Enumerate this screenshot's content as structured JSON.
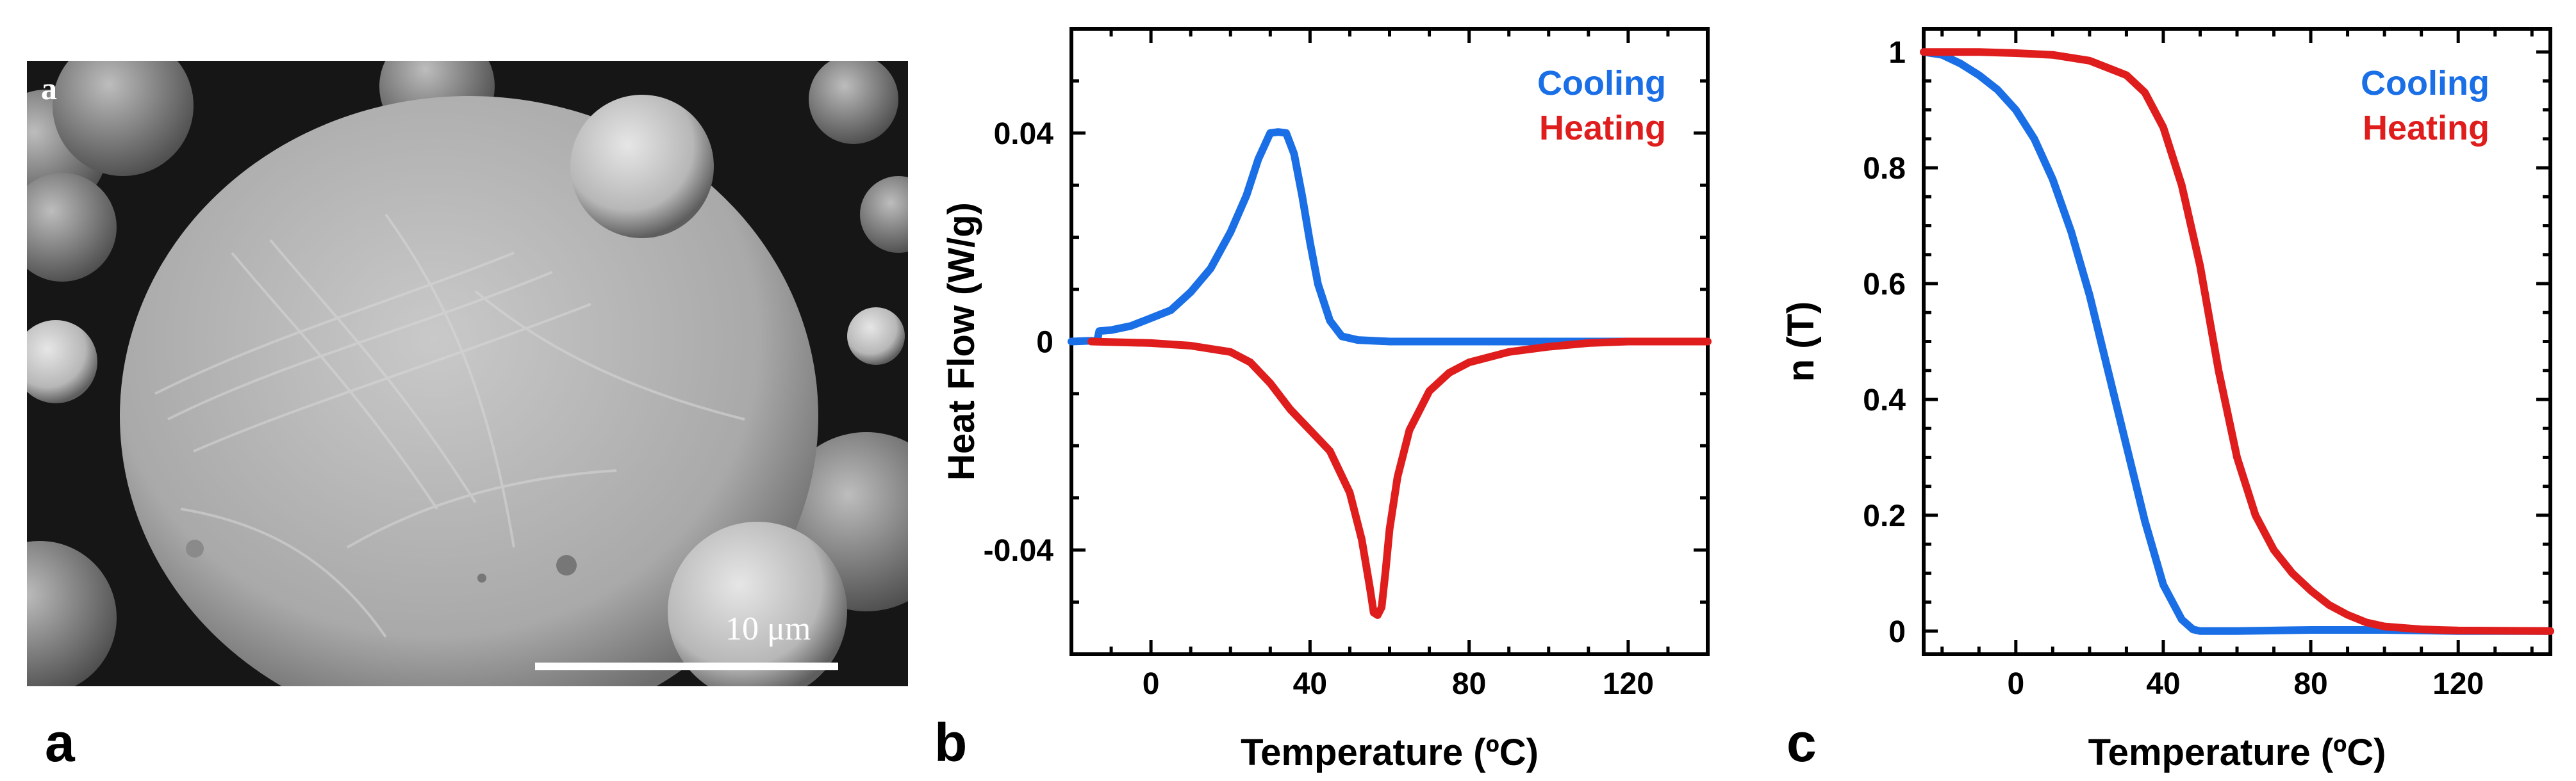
{
  "panels": {
    "a": {
      "label": "a",
      "inset_label": "a",
      "scale_bar": "10 μm",
      "image_description_icon": "sem-micrograph-particle"
    },
    "b": {
      "label": "b"
    },
    "c": {
      "label": "c"
    }
  },
  "colors": {
    "cooling": "#1a6fe6",
    "heating": "#e01d1d"
  },
  "chart_data": [
    {
      "id": "b",
      "type": "line",
      "title": "",
      "xlabel": "Temperature (ºC)",
      "ylabel": "Heat Flow (W/g)",
      "xlim": [
        -20,
        140
      ],
      "ylim": [
        -0.06,
        0.06
      ],
      "xticks": [
        0,
        40,
        80,
        120
      ],
      "xtick_labels": [
        "0",
        "40",
        "80",
        "120"
      ],
      "yticks": [
        -0.04,
        0,
        0.04
      ],
      "ytick_labels": [
        "-0.04",
        "0",
        "0.04"
      ],
      "legend": [
        "Cooling",
        "Heating"
      ],
      "series": [
        {
          "name": "Cooling",
          "x": [
            120,
            100,
            80,
            60,
            52,
            48,
            45,
            42,
            40,
            38,
            36,
            34,
            32,
            30,
            27,
            24,
            20,
            15,
            10,
            5,
            0,
            -5,
            -10,
            -13,
            -13.5,
            -17,
            -20
          ],
          "y": [
            0,
            0,
            0,
            0,
            0.0003,
            0.001,
            0.004,
            0.011,
            0.019,
            0.028,
            0.036,
            0.04,
            0.0402,
            0.04,
            0.035,
            0.028,
            0.021,
            0.014,
            0.0095,
            0.006,
            0.0045,
            0.003,
            0.0022,
            0.002,
            0.0002,
            0.0001,
            0
          ]
        },
        {
          "name": "Heating",
          "x": [
            -15,
            0,
            10,
            20,
            25,
            30,
            35,
            40,
            45,
            50,
            53,
            55,
            56,
            57,
            58,
            59,
            60,
            62,
            65,
            70,
            75,
            80,
            90,
            100,
            110,
            120,
            130,
            140
          ],
          "y": [
            0,
            -0.0003,
            -0.0008,
            -0.002,
            -0.004,
            -0.008,
            -0.013,
            -0.017,
            -0.021,
            -0.029,
            -0.038,
            -0.047,
            -0.052,
            -0.0525,
            -0.051,
            -0.044,
            -0.036,
            -0.026,
            -0.017,
            -0.0095,
            -0.006,
            -0.004,
            -0.002,
            -0.001,
            -0.0003,
            0,
            0,
            0
          ]
        }
      ]
    },
    {
      "id": "c",
      "type": "line",
      "title": "",
      "xlabel": "Temperature (ºC)",
      "ylabel": "n (T)",
      "xlim": [
        -25,
        145
      ],
      "ylim": [
        -0.04,
        1.04
      ],
      "xticks": [
        0,
        40,
        80,
        120
      ],
      "xtick_labels": [
        "0",
        "40",
        "80",
        "120"
      ],
      "yticks": [
        0,
        0.2,
        0.4,
        0.6,
        0.8,
        1
      ],
      "ytick_labels": [
        "0",
        "0.2",
        "0.4",
        "0.6",
        "0.8",
        "1"
      ],
      "legend": [
        "Cooling",
        "Heating"
      ],
      "series": [
        {
          "name": "Cooling",
          "x": [
            -25,
            -20,
            -15,
            -10,
            -5,
            0,
            5,
            10,
            15,
            20,
            25,
            30,
            35,
            40,
            45,
            48,
            50,
            55,
            60,
            80,
            100,
            120,
            145
          ],
          "y": [
            1.0,
            0.995,
            0.98,
            0.96,
            0.935,
            0.9,
            0.85,
            0.78,
            0.69,
            0.58,
            0.45,
            0.32,
            0.19,
            0.08,
            0.02,
            0.003,
            0.0,
            0.0,
            0.0,
            0.002,
            0.002,
            0.0,
            0.0
          ]
        },
        {
          "name": "Heating",
          "x": [
            -25,
            -10,
            0,
            10,
            20,
            30,
            35,
            40,
            45,
            50,
            55,
            60,
            65,
            70,
            75,
            80,
            85,
            90,
            95,
            100,
            110,
            120,
            145
          ],
          "y": [
            1.0,
            1.0,
            0.998,
            0.995,
            0.985,
            0.96,
            0.93,
            0.87,
            0.77,
            0.63,
            0.45,
            0.3,
            0.2,
            0.14,
            0.1,
            0.07,
            0.045,
            0.028,
            0.015,
            0.008,
            0.003,
            0.001,
            0.0
          ]
        }
      ]
    }
  ]
}
